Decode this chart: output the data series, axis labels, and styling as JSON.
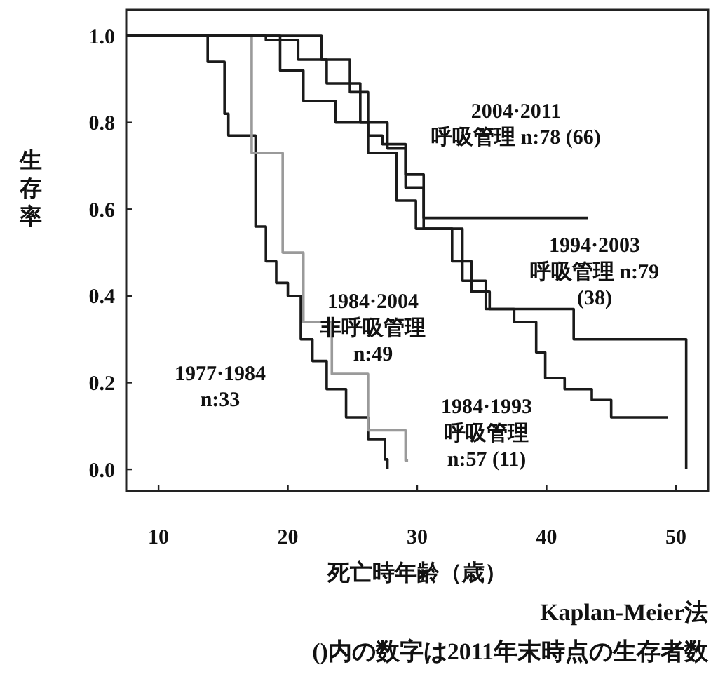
{
  "chart_data": {
    "type": "step",
    "xlabel": "死亡時年齢（歳）",
    "ylabel": "生存率",
    "xlim": [
      7.5,
      52.5
    ],
    "ylim": [
      -0.05,
      1.06
    ],
    "xticks": [
      10,
      20,
      30,
      40,
      50
    ],
    "yticks": [
      {
        "value": 0,
        "label": "0.0"
      },
      {
        "value": 0.2,
        "label": "0.2"
      },
      {
        "value": 0.4,
        "label": "0.4"
      },
      {
        "value": 0.6,
        "label": "0.6"
      },
      {
        "value": 0.8,
        "label": "0.8"
      },
      {
        "value": 1,
        "label": "1.0"
      }
    ],
    "series": [
      {
        "name": "1977·1984\nn:33",
        "color": "#1a1a1a",
        "x": [
          7.5,
          13.1,
          13.8,
          15.1,
          15.4,
          17.5,
          18.3,
          19.1,
          20,
          21,
          21.9,
          23,
          24.5,
          26.2,
          27.5,
          27.7
        ],
        "values": [
          1,
          1,
          0.94,
          0.82,
          0.77,
          0.56,
          0.48,
          0.43,
          0.4,
          0.3,
          0.25,
          0.185,
          0.12,
          0.07,
          0.023,
          0
        ]
      },
      {
        "name": "1984·2004\n非呼吸管理\nn:49",
        "color": "#9a9a9a",
        "x": [
          7.5,
          13.3,
          17.2,
          19.6,
          21.2,
          23.4,
          26.2,
          29.1,
          29.3
        ],
        "values": [
          1,
          1,
          0.73,
          0.5,
          0.34,
          0.22,
          0.09,
          0.02,
          0.02
        ]
      },
      {
        "name": "1984·1993\n呼吸管理\nn:57 (11)",
        "color": "#1a1a1a",
        "x": [
          7.5,
          15.8,
          19.4,
          21.2,
          23.7,
          26.2,
          28.4,
          29.9,
          33.5,
          35.3,
          37.5,
          39.2,
          39.9,
          41.4,
          43.5,
          45,
          49.4
        ],
        "values": [
          1,
          1,
          0.92,
          0.85,
          0.8,
          0.73,
          0.62,
          0.555,
          0.435,
          0.37,
          0.34,
          0.27,
          0.21,
          0.185,
          0.16,
          0.12,
          0.12
        ]
      },
      {
        "name": "1994·2003\n呼吸管理 n:79\n(38)",
        "color": "#1a1a1a",
        "x": [
          7.5,
          18.3,
          20.8,
          23,
          25.6,
          27.7,
          29.1,
          30.5,
          32.7,
          34.2,
          35.6,
          42.1,
          50.8,
          50.8
        ],
        "values": [
          1,
          0.99,
          0.945,
          0.89,
          0.8,
          0.74,
          0.65,
          0.555,
          0.48,
          0.41,
          0.37,
          0.3,
          0.3,
          0
        ]
      },
      {
        "name": "2004·2011\n呼吸管理 n:78 (66)",
        "color": "#1a1a1a",
        "x": [
          7.5,
          19.5,
          22.6,
          24.8,
          26.2,
          27.3,
          29.1,
          30.5,
          43.2
        ],
        "values": [
          1,
          1,
          0.945,
          0.87,
          0.77,
          0.75,
          0.68,
          0.58,
          0.58
        ]
      }
    ],
    "annotations": [
      "Kaplan-Meier法",
      "()内の数字は2011年末時点の生存者数"
    ]
  }
}
